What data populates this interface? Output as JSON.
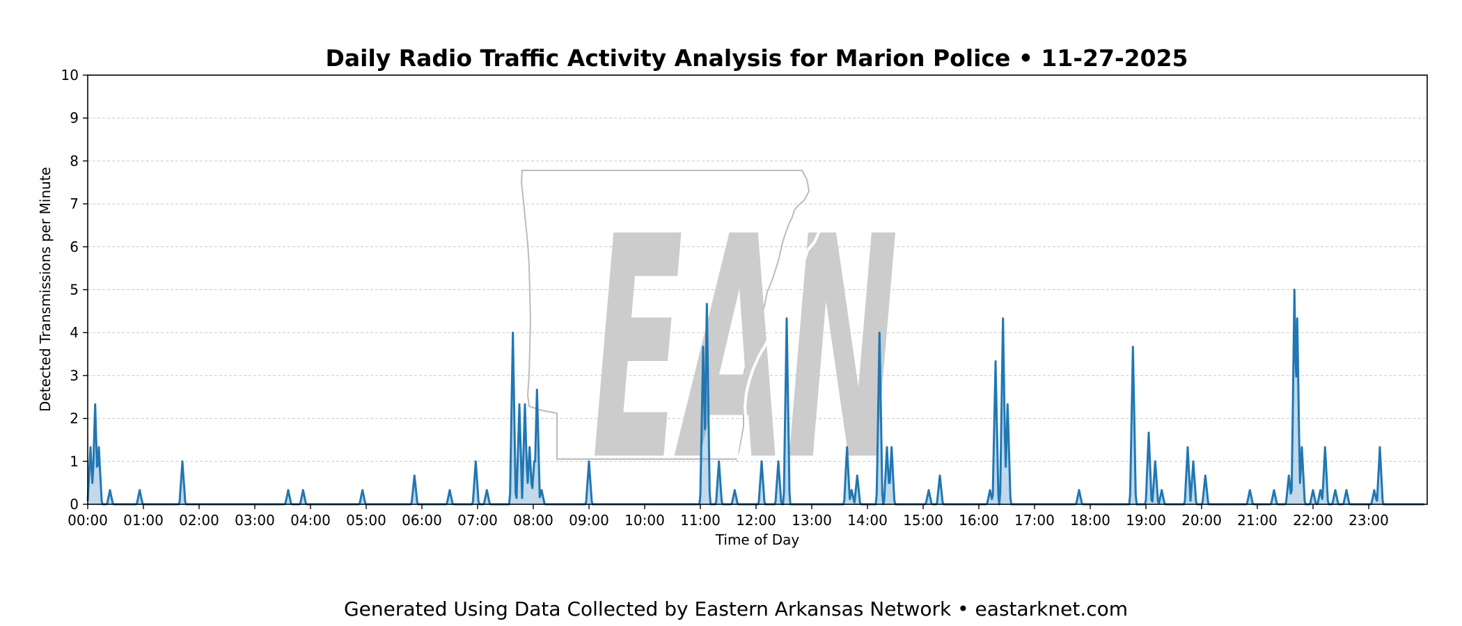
{
  "chart_data": {
    "type": "area",
    "title": "Daily Radio Traffic Activity Analysis for Marion Police • 11-27-2025",
    "xlabel": "Time of Day",
    "ylabel": "Detected Transmissions per Minute",
    "x_unit": "hours",
    "xlim": [
      0,
      24
    ],
    "ylim": [
      0,
      10
    ],
    "yticks": [
      0,
      1,
      2,
      3,
      4,
      5,
      6,
      7,
      8,
      9,
      10
    ],
    "xticks": [
      "00:00",
      "01:00",
      "02:00",
      "03:00",
      "04:00",
      "05:00",
      "06:00",
      "07:00",
      "08:00",
      "09:00",
      "10:00",
      "11:00",
      "12:00",
      "13:00",
      "14:00",
      "15:00",
      "16:00",
      "17:00",
      "18:00",
      "19:00",
      "20:00",
      "21:00",
      "22:00",
      "23:00"
    ],
    "grid": "horizontal dashed",
    "series": [
      {
        "color": "#1f77b4",
        "peaks": [
          [
            0.05,
            1.33
          ],
          [
            0.13,
            2.33
          ],
          [
            0.2,
            1.33
          ],
          [
            0.4,
            0.33
          ],
          [
            0.93,
            0.33
          ],
          [
            1.7,
            1.0
          ],
          [
            3.6,
            0.33
          ],
          [
            3.87,
            0.33
          ],
          [
            4.93,
            0.33
          ],
          [
            5.87,
            0.67
          ],
          [
            6.5,
            0.33
          ],
          [
            6.97,
            1.0
          ],
          [
            7.17,
            0.33
          ],
          [
            7.63,
            4.0
          ],
          [
            7.75,
            2.33
          ],
          [
            7.85,
            2.33
          ],
          [
            7.93,
            1.33
          ],
          [
            8.02,
            1.0
          ],
          [
            8.07,
            2.67
          ],
          [
            8.15,
            0.33
          ],
          [
            9.0,
            1.0
          ],
          [
            11.05,
            3.67
          ],
          [
            11.12,
            4.67
          ],
          [
            11.33,
            1.0
          ],
          [
            11.62,
            0.33
          ],
          [
            12.1,
            1.0
          ],
          [
            12.4,
            1.0
          ],
          [
            12.55,
            4.33
          ],
          [
            13.63,
            1.33
          ],
          [
            13.72,
            0.33
          ],
          [
            13.82,
            0.67
          ],
          [
            14.22,
            4.0
          ],
          [
            14.35,
            1.33
          ],
          [
            14.43,
            1.33
          ],
          [
            15.1,
            0.33
          ],
          [
            15.3,
            0.67
          ],
          [
            16.2,
            0.33
          ],
          [
            16.3,
            3.33
          ],
          [
            16.43,
            4.33
          ],
          [
            16.52,
            2.33
          ],
          [
            17.8,
            0.33
          ],
          [
            18.77,
            3.67
          ],
          [
            19.05,
            1.67
          ],
          [
            19.17,
            1.0
          ],
          [
            19.28,
            0.33
          ],
          [
            19.75,
            1.33
          ],
          [
            19.85,
            1.0
          ],
          [
            20.07,
            0.67
          ],
          [
            20.87,
            0.33
          ],
          [
            21.3,
            0.33
          ],
          [
            21.57,
            0.67
          ],
          [
            21.67,
            5.0
          ],
          [
            21.72,
            4.33
          ],
          [
            21.8,
            1.33
          ],
          [
            22.0,
            0.33
          ],
          [
            22.13,
            0.33
          ],
          [
            22.22,
            1.33
          ],
          [
            22.4,
            0.33
          ],
          [
            22.6,
            0.33
          ],
          [
            23.1,
            0.33
          ],
          [
            23.2,
            1.33
          ]
        ]
      }
    ]
  },
  "watermark": {
    "text": "EAN",
    "color": "#cccccc",
    "outline": "state-map-outline"
  },
  "footer": {
    "text": "Generated Using Data Collected by Eastern Arkansas Network • eastarknet.com"
  }
}
